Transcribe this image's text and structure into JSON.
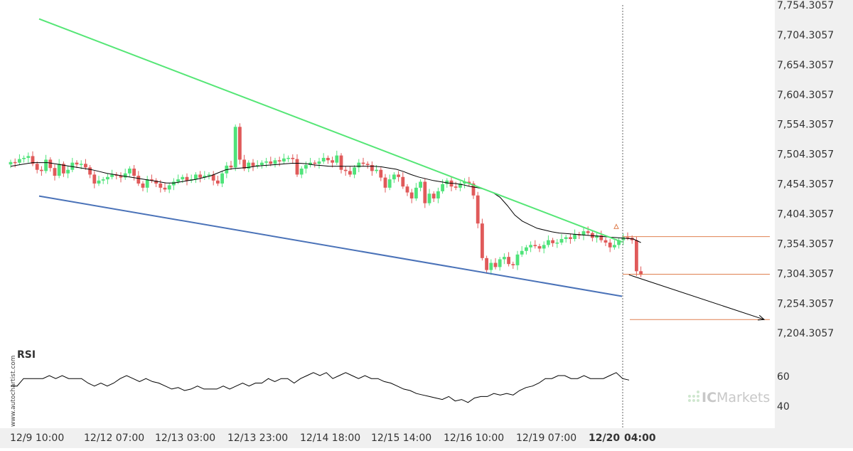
{
  "chart_data": {
    "type": "candlestick",
    "title": "",
    "y_axis": {
      "ticks": [
        "7,754.3057",
        "7,704.3057",
        "7,654.3057",
        "7,604.3057",
        "7,554.3057",
        "7,504.3057",
        "7,454.3057",
        "7,404.3057",
        "7,354.3057",
        "7,304.3057",
        "7,254.3057",
        "7,204.3057"
      ],
      "range": [
        7184.3057,
        7754.3057
      ]
    },
    "x_axis": {
      "labels": [
        "12/9 10:00",
        "12/12 07:00",
        "12/13 03:00",
        "12/13 23:00",
        "12/14 18:00",
        "12/15 14:00",
        "12/16 10:00",
        "12/19 07:00"
      ],
      "highlight_label": "12/20",
      "highlight_time": "04:00"
    },
    "colors": {
      "up_candle": "#4fe37a",
      "down_candle": "#e05a5a",
      "resistance_line": "#55e676",
      "support_line": "#4a72b8",
      "moving_average": "#000000",
      "level_lines": "#e08050",
      "rsi_line": "#000000"
    },
    "candles_close": [
      7491,
      7490,
      7496,
      7498,
      7501,
      7488,
      7478,
      7476,
      7495,
      7481,
      7468,
      7488,
      7472,
      7478,
      7490,
      7487,
      7488,
      7482,
      7470,
      7455,
      7460,
      7462,
      7466,
      7470,
      7468,
      7465,
      7472,
      7480,
      7468,
      7455,
      7448,
      7462,
      7460,
      7455,
      7448,
      7445,
      7452,
      7458,
      7462,
      7466,
      7460,
      7462,
      7470,
      7465,
      7468,
      7470,
      7460,
      7455,
      7472,
      7485,
      7482,
      7550,
      7495,
      7480,
      7490,
      7484,
      7486,
      7490,
      7492,
      7488,
      7494,
      7492,
      7497,
      7498,
      7496,
      7470,
      7480,
      7486,
      7490,
      7488,
      7492,
      7498,
      7494,
      7490,
      7502,
      7478,
      7476,
      7470,
      7482,
      7490,
      7488,
      7486,
      7476,
      7478,
      7465,
      7448,
      7462,
      7470,
      7466,
      7450,
      7440,
      7430,
      7448,
      7458,
      7422,
      7438,
      7430,
      7442,
      7454,
      7460,
      7450,
      7448,
      7455,
      7458,
      7455,
      7435,
      7388,
      7330,
      7310,
      7322,
      7315,
      7328,
      7332,
      7320,
      7318,
      7336,
      7342,
      7348,
      7352,
      7350,
      7346,
      7352,
      7360,
      7355,
      7356,
      7362,
      7365,
      7362,
      7370,
      7368,
      7375,
      7372,
      7364,
      7368,
      7360,
      7356,
      7348,
      7352,
      7360,
      7365,
      7364,
      7360,
      7308,
      7302
    ],
    "moving_average": [
      7484,
      7486,
      7488,
      7490,
      7490,
      7490,
      7488,
      7486,
      7484,
      7482,
      7480,
      7478,
      7475,
      7472,
      7470,
      7468,
      7466,
      7464,
      7462,
      7460,
      7458,
      7456,
      7456,
      7458,
      7460,
      7462,
      7465,
      7468,
      7473,
      7478,
      7480,
      7481,
      7482,
      7484,
      7485,
      7486,
      7487,
      7488,
      7489,
      7489,
      7488,
      7486,
      7485,
      7484,
      7484,
      7484,
      7484,
      7484,
      7484,
      7484,
      7483,
      7481,
      7479,
      7475,
      7470,
      7466,
      7463,
      7460,
      7458,
      7456,
      7455,
      7453,
      7450,
      7448,
      7445,
      7440,
      7432,
      7418,
      7402,
      7392,
      7386,
      7380,
      7377,
      7374,
      7372,
      7371,
      7370,
      7369,
      7368,
      7367,
      7366,
      7365,
      7364,
      7363,
      7362,
      7356
    ],
    "resistance_line": {
      "start": {
        "bar": 0,
        "value": 7731
      },
      "end": {
        "bar": 84,
        "value": 7357
      }
    },
    "support_line": {
      "start": {
        "bar": 0,
        "value": 7434
      },
      "end": {
        "bar": 84,
        "value": 7266
      }
    },
    "level_lines": [
      7366,
      7303,
      7227
    ],
    "projection": {
      "from": {
        "bar": 85,
        "value": 7302
      },
      "to": {
        "bar": 103,
        "value": 7227
      }
    },
    "rsi": {
      "label": "RSI",
      "ticks": [
        "60",
        "40"
      ],
      "range": [
        35,
        70
      ],
      "values": [
        53,
        53,
        58,
        58,
        58,
        58,
        60,
        58,
        60,
        58,
        58,
        58,
        55,
        53,
        55,
        53,
        55,
        58,
        60,
        58,
        56,
        58,
        56,
        55,
        53,
        51,
        52,
        50,
        51,
        53,
        51,
        51,
        51,
        53,
        51,
        53,
        55,
        53,
        55,
        55,
        58,
        56,
        58,
        58,
        55,
        58,
        60,
        62,
        60,
        62,
        58,
        60,
        62,
        60,
        58,
        60,
        58,
        58,
        56,
        55,
        53,
        51,
        50,
        48,
        47,
        46,
        45,
        44,
        46,
        43,
        44,
        42,
        45,
        46,
        46,
        48,
        47,
        48,
        47,
        50,
        52,
        53,
        55,
        58,
        58,
        60,
        60,
        58,
        58,
        60,
        58,
        58,
        58,
        60,
        62,
        58,
        57
      ]
    }
  },
  "watermark": {
    "side_text": "www.autochartist.com",
    "logo_prefix": "IC",
    "logo_suffix": "Markets"
  }
}
